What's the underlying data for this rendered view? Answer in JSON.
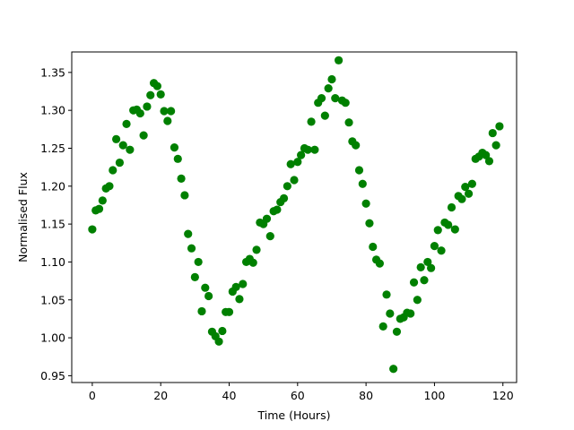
{
  "chart_data": {
    "type": "scatter",
    "title": "",
    "xlabel": "Time (Hours)",
    "ylabel": "Normalised Flux",
    "xlim": [
      -6,
      124
    ],
    "ylim": [
      0.941,
      1.377
    ],
    "xticks": [
      0,
      20,
      40,
      60,
      80,
      100,
      120
    ],
    "xtick_labels": [
      "0",
      "20",
      "40",
      "60",
      "80",
      "100",
      "120"
    ],
    "yticks": [
      0.95,
      1.0,
      1.05,
      1.1,
      1.15,
      1.2,
      1.25,
      1.3,
      1.35
    ],
    "ytick_labels": [
      "0.95",
      "1.00",
      "1.05",
      "1.10",
      "1.15",
      "1.20",
      "1.25",
      "1.30",
      "1.35"
    ],
    "grid": false,
    "legend": "none",
    "marker_color": "#008000",
    "series": [
      {
        "x": [
          0,
          1,
          2,
          3,
          4,
          5,
          6,
          7,
          8,
          9,
          10,
          11,
          12,
          13,
          14,
          15,
          16,
          17,
          18,
          19,
          20,
          21,
          22,
          23,
          24,
          25,
          26,
          27,
          28,
          29,
          30,
          31,
          32,
          33,
          34,
          35,
          36,
          37,
          38,
          39,
          40,
          41,
          42,
          43,
          44,
          45,
          46,
          47,
          48,
          49,
          50,
          51,
          52,
          53,
          54,
          55,
          56,
          57,
          58,
          59,
          60,
          61,
          62,
          63,
          64,
          65,
          66,
          67,
          68,
          69,
          70,
          71,
          72,
          73,
          74,
          75,
          76,
          77,
          78,
          79,
          80,
          81,
          82,
          83,
          84,
          85,
          86,
          87,
          88,
          89,
          90,
          91,
          92,
          93,
          94,
          95,
          96,
          97,
          98,
          99,
          100,
          101,
          102,
          103,
          104,
          105,
          106,
          107,
          108,
          109,
          110,
          111,
          112,
          113,
          114,
          115,
          116,
          117,
          118,
          119
        ],
        "y": [
          1.143,
          1.168,
          1.17,
          1.181,
          1.197,
          1.2,
          1.221,
          1.262,
          1.231,
          1.254,
          1.282,
          1.248,
          1.3,
          1.301,
          1.296,
          1.267,
          1.305,
          1.32,
          1.336,
          1.332,
          1.321,
          1.299,
          1.286,
          1.299,
          1.251,
          1.236,
          1.21,
          1.188,
          1.137,
          1.118,
          1.08,
          1.1,
          1.035,
          1.066,
          1.055,
          1.008,
          1.002,
          0.995,
          1.009,
          1.034,
          1.034,
          1.061,
          1.067,
          1.051,
          1.071,
          1.1,
          1.104,
          1.099,
          1.116,
          1.152,
          1.15,
          1.157,
          1.134,
          1.167,
          1.169,
          1.179,
          1.184,
          1.2,
          1.229,
          1.208,
          1.232,
          1.241,
          1.25,
          1.248,
          1.285,
          1.248,
          1.31,
          1.316,
          1.293,
          1.329,
          1.341,
          1.316,
          1.366,
          1.313,
          1.31,
          1.284,
          1.259,
          1.254,
          1.221,
          1.203,
          1.177,
          1.151,
          1.12,
          1.103,
          1.098,
          1.015,
          1.057,
          1.032,
          0.959,
          1.008,
          1.025,
          1.027,
          1.033,
          1.032,
          1.073,
          1.05,
          1.093,
          1.076,
          1.1,
          1.092,
          1.121,
          1.142,
          1.115,
          1.152,
          1.149,
          1.172,
          1.143,
          1.187,
          1.183,
          1.199,
          1.19,
          1.203,
          1.236,
          1.239,
          1.244,
          1.241,
          1.233,
          1.27,
          1.254,
          1.279
        ]
      }
    ]
  }
}
